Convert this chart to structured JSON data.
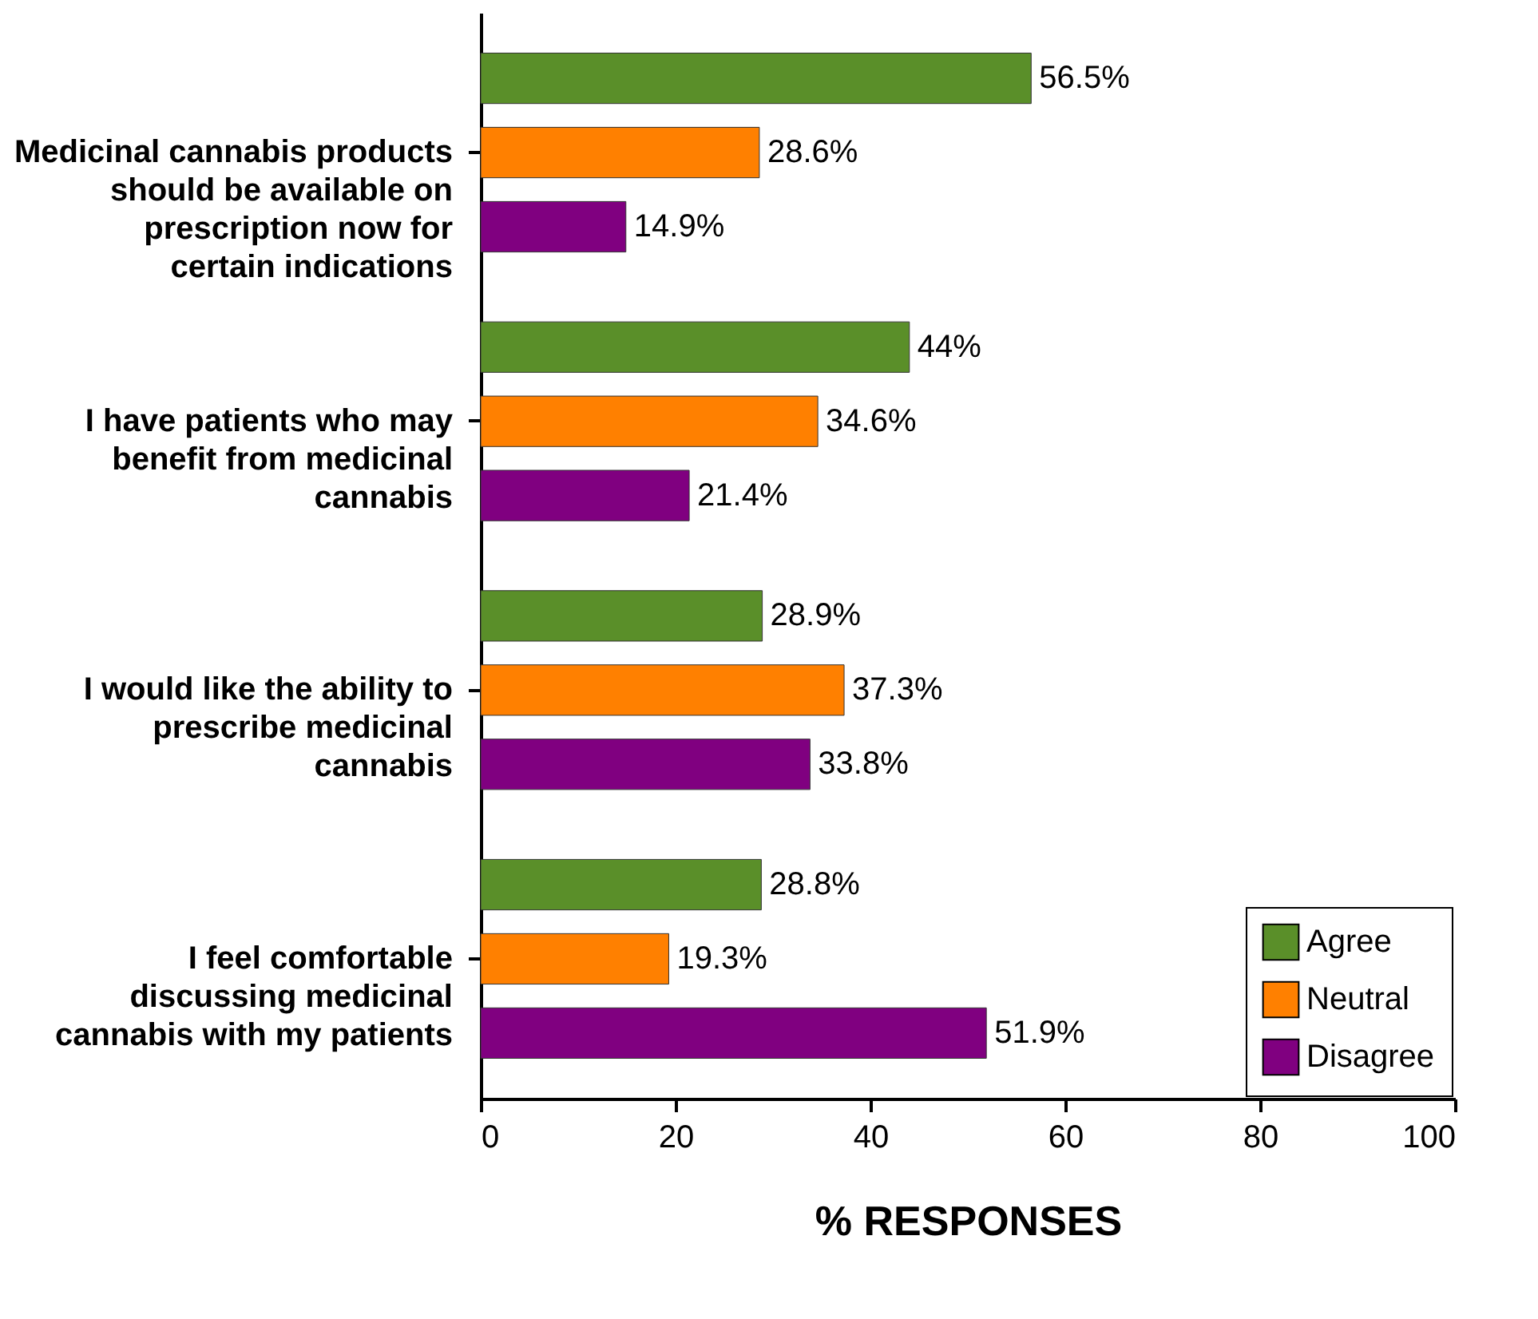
{
  "chart_data": {
    "type": "bar",
    "orientation": "horizontal",
    "xlabel": "% RESPONSES",
    "categories": [
      "Medicinal cannabis products should be available on prescription now for certain indications",
      "I have patients who may benefit from medicinal cannabis",
      "I would like the ability to prescribe medicinal cannabis",
      "I feel comfortable discussing medicinal cannabis with my patients"
    ],
    "series": [
      {
        "name": "Agree",
        "color": "#5a8f29",
        "values": [
          56.5,
          44,
          28.9,
          28.8
        ],
        "value_labels": [
          "56.5%",
          "44%",
          "28.9%",
          "28.8%"
        ]
      },
      {
        "name": "Neutral",
        "color": "#ff8000",
        "values": [
          28.6,
          34.6,
          37.3,
          19.3
        ],
        "value_labels": [
          "28.6%",
          "34.6%",
          "37.3%",
          "19.3%"
        ]
      },
      {
        "name": "Disagree",
        "color": "#800080",
        "values": [
          14.9,
          21.4,
          33.8,
          51.9
        ],
        "value_labels": [
          "14.9%",
          "21.4%",
          "33.8%",
          "51.9%"
        ]
      }
    ],
    "xlim": [
      0,
      100
    ],
    "xticks": [
      0,
      20,
      40,
      60,
      80,
      100
    ],
    "grid": false,
    "legend": "bottom right"
  }
}
